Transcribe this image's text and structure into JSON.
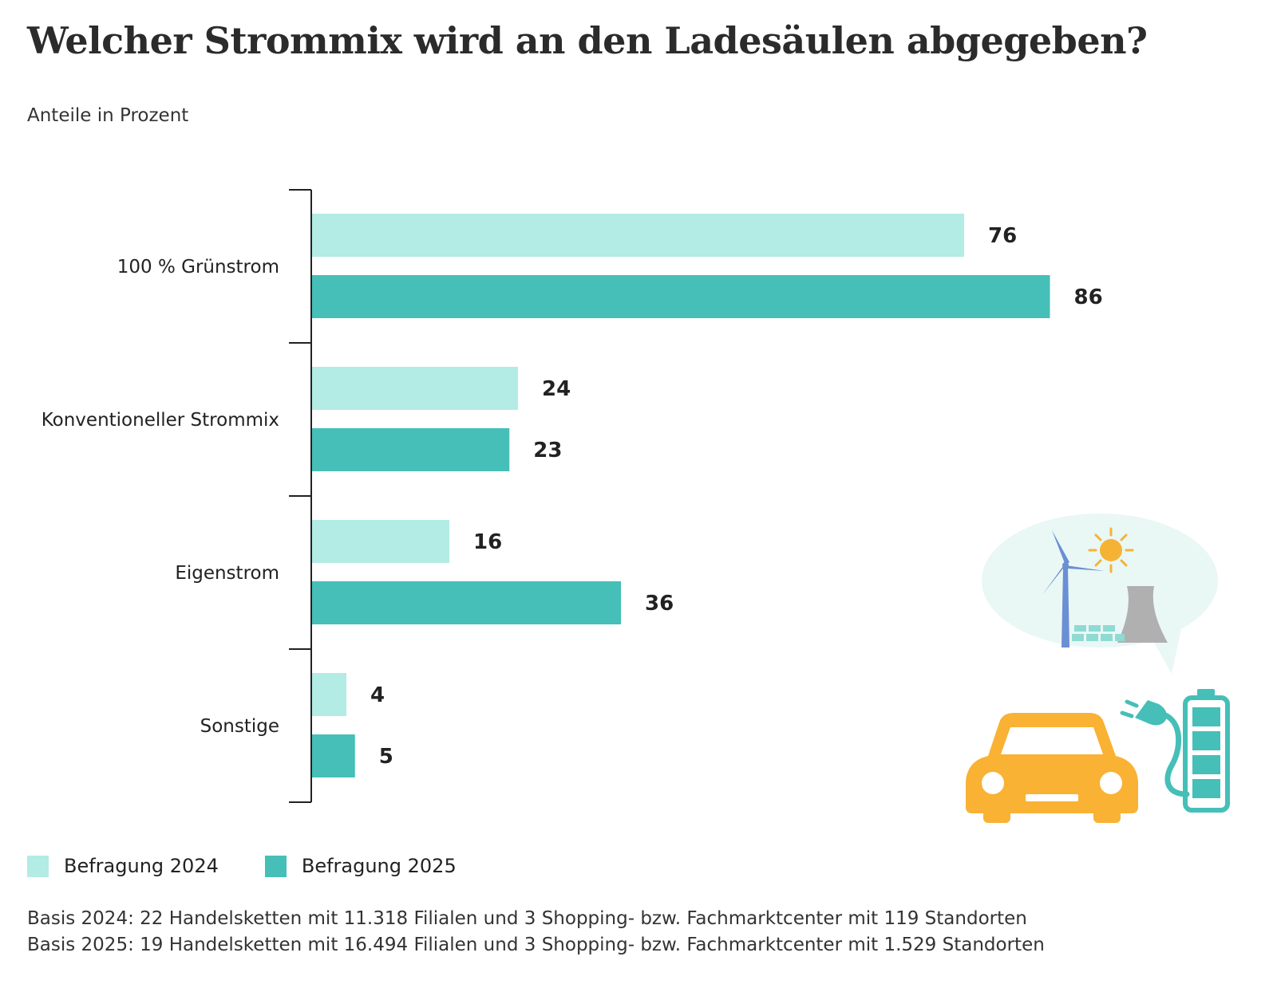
{
  "chart_data": {
    "type": "bar",
    "orientation": "horizontal",
    "title": "Welcher Strommix wird an den Ladesäulen abgegeben?",
    "subtitle": "Anteile in Prozent",
    "categories": [
      "100 % Grünstrom",
      "Konventioneller Strommix",
      "Eigenstrom",
      "Sonstige"
    ],
    "series": [
      {
        "name": "Befragung 2024",
        "values": [
          76,
          24,
          16,
          4
        ],
        "color": "#b3ebe5"
      },
      {
        "name": "Befragung 2025",
        "values": [
          86,
          23,
          36,
          5
        ],
        "color": "#45bfb8"
      }
    ],
    "xlim": [
      0,
      100
    ],
    "xlabel": "",
    "ylabel": "",
    "grid": false,
    "legend": "bottom-left"
  },
  "footnotes": [
    "Basis 2024: 22 Handelsketten mit 11.318 Filialen und 3 Shopping- bzw. Fachmarktcenter mit 119 Standorten",
    "Basis 2025: 19 Handelsketten mit 16.494 Filialen und 3 Shopping- bzw. Fachmarktcenter mit 1.529 Standorten"
  ],
  "illustration": {
    "car_color": "#f9b233",
    "teal_color": "#45bfb8",
    "bubble_color": "#e9f7f5",
    "sun_color": "#f5b335",
    "turbine_color": "#6a8fd4",
    "tower_color": "#b0b0b0",
    "icons": [
      "car-icon",
      "plug-icon",
      "battery-icon",
      "wind-turbine-icon",
      "sun-icon",
      "cooling-tower-icon",
      "solar-panel-icon"
    ]
  }
}
